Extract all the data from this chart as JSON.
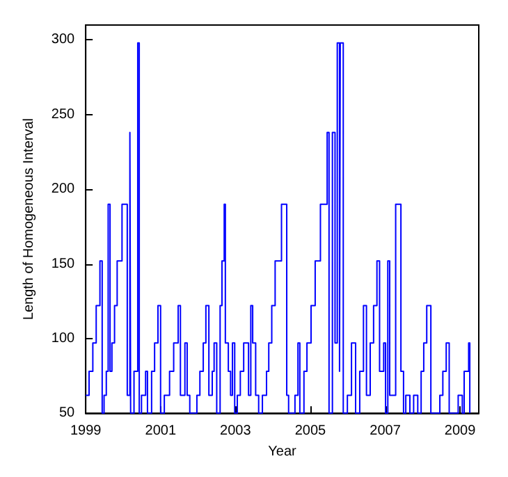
{
  "chart_data": {
    "type": "step",
    "xlabel": "Year",
    "ylabel": "Length of Homogeneous Interval",
    "x": [
      1999.0,
      1999.09,
      1999.19,
      1999.28,
      1999.38,
      1999.44,
      1999.49,
      1999.55,
      1999.6,
      1999.65,
      1999.7,
      1999.77,
      1999.84,
      1999.97,
      2000.11,
      2000.18,
      2000.2,
      2000.29,
      2000.39,
      2000.43,
      2000.49,
      2000.6,
      2000.65,
      2000.76,
      2000.84,
      2000.93,
      2001.0,
      2001.1,
      2001.24,
      2001.35,
      2001.47,
      2001.53,
      2001.65,
      2001.71,
      2001.78,
      2001.97,
      2002.05,
      2002.14,
      2002.21,
      2002.29,
      2002.38,
      2002.43,
      2002.5,
      2002.59,
      2002.64,
      2002.7,
      2002.73,
      2002.81,
      2002.87,
      2002.92,
      2002.98,
      2003.05,
      2003.13,
      2003.22,
      2003.35,
      2003.41,
      2003.46,
      2003.54,
      2003.62,
      2003.72,
      2003.83,
      2003.89,
      2003.97,
      2004.06,
      2004.23,
      2004.37,
      2004.42,
      2004.59,
      2004.67,
      2004.72,
      2004.83,
      2004.91,
      2005.02,
      2005.13,
      2005.27,
      2005.45,
      2005.5,
      2005.59,
      2005.66,
      2005.72,
      2005.78,
      2005.8,
      2005.88,
      2005.99,
      2006.1,
      2006.21,
      2006.32,
      2006.42,
      2006.5,
      2006.6,
      2006.69,
      2006.78,
      2006.85,
      2006.96,
      2007.01,
      2007.07,
      2007.12,
      2007.28,
      2007.42,
      2007.49,
      2007.55,
      2007.66,
      2007.76,
      2007.87,
      2007.96,
      2008.03,
      2008.11,
      2008.22,
      2008.46,
      2008.54,
      2008.63,
      2008.71,
      2008.95,
      2009.06,
      2009.11,
      2009.23,
      2009.26
    ],
    "series": [
      {
        "color": "#0000ff",
        "values": [
          62,
          78,
          97,
          122,
          152,
          50,
          62,
          78,
          190,
          78,
          97,
          122,
          152,
          190,
          62,
          238,
          50,
          78,
          298,
          50,
          62,
          78,
          50,
          78,
          97,
          122,
          50,
          62,
          78,
          97,
          122,
          62,
          97,
          62,
          50,
          62,
          78,
          97,
          122,
          62,
          78,
          97,
          50,
          122,
          152,
          190,
          97,
          78,
          62,
          97,
          50,
          62,
          78,
          97,
          62,
          122,
          97,
          62,
          50,
          62,
          78,
          97,
          122,
          152,
          190,
          62,
          50,
          62,
          97,
          50,
          78,
          97,
          122,
          152,
          190,
          238,
          50,
          238,
          97,
          298,
          78,
          298,
          50,
          62,
          97,
          50,
          78,
          122,
          62,
          97,
          122,
          152,
          78,
          97,
          50,
          152,
          62,
          190,
          78,
          50,
          62,
          50,
          62,
          50,
          78,
          97,
          122,
          50,
          62,
          78,
          97,
          50,
          62,
          50,
          78,
          97,
          50
        ]
      }
    ],
    "xlim": [
      1999,
      2009.5
    ],
    "ylim": [
      50,
      310
    ],
    "xticks": [
      1999,
      2001,
      2003,
      2005,
      2007,
      2009
    ],
    "yticks": [
      50,
      100,
      150,
      200,
      250,
      300
    ],
    "grid": false,
    "marker": "none",
    "line_style": "solid"
  }
}
